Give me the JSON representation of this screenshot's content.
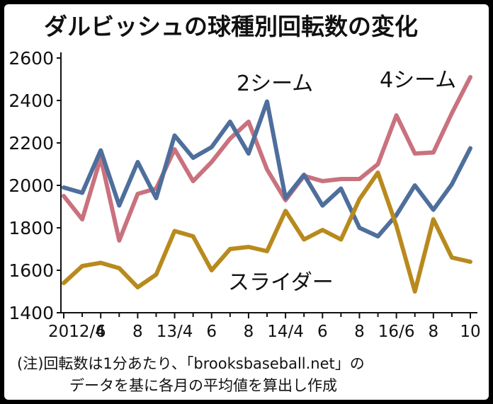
{
  "chart_data": {
    "type": "line",
    "title": "ダルビッシュの球種別回転数の変化",
    "xlabel": "",
    "ylabel": "",
    "ylim": [
      1400,
      2600
    ],
    "yticks": [
      1400,
      1600,
      1800,
      2000,
      2200,
      2400,
      2600
    ],
    "x_tick_labels": [
      "2012/4",
      "6",
      "8",
      "13/4",
      "6",
      "8",
      "14/4",
      "6",
      "8",
      "16/6",
      "8",
      "10"
    ],
    "x_tick_label_index": [
      0,
      2,
      4,
      6,
      8,
      10,
      12,
      14,
      16,
      18,
      20,
      22
    ],
    "x_count": 23,
    "series": [
      {
        "name": "4シーム",
        "color": "#c9727e",
        "values": [
          1950,
          1840,
          2130,
          1740,
          1960,
          1985,
          2170,
          2020,
          2110,
          2220,
          2300,
          2075,
          1930,
          2045,
          2020,
          2030,
          2030,
          2100,
          2330,
          2150,
          2155,
          2340,
          2510
        ]
      },
      {
        "name": "2シーム",
        "color": "#4e6f9c",
        "values": [
          1990,
          1965,
          2165,
          1905,
          2110,
          1940,
          2235,
          2130,
          2180,
          2300,
          2150,
          2395,
          1940,
          2050,
          1905,
          1985,
          1800,
          1760,
          1860,
          2000,
          1885,
          2005,
          2175
        ]
      },
      {
        "name": "スライダー",
        "color": "#b88a1e",
        "values": [
          1540,
          1620,
          1635,
          1610,
          1520,
          1580,
          1785,
          1760,
          1600,
          1700,
          1710,
          1690,
          1880,
          1745,
          1790,
          1745,
          1935,
          2060,
          1810,
          1500,
          1840,
          1660,
          1640
        ]
      }
    ],
    "note_line1": "(注)回転数は1分あたり、「brooksbaseball.net」の",
    "note_line2": "データを基に各月の平均値を算出し作成"
  }
}
